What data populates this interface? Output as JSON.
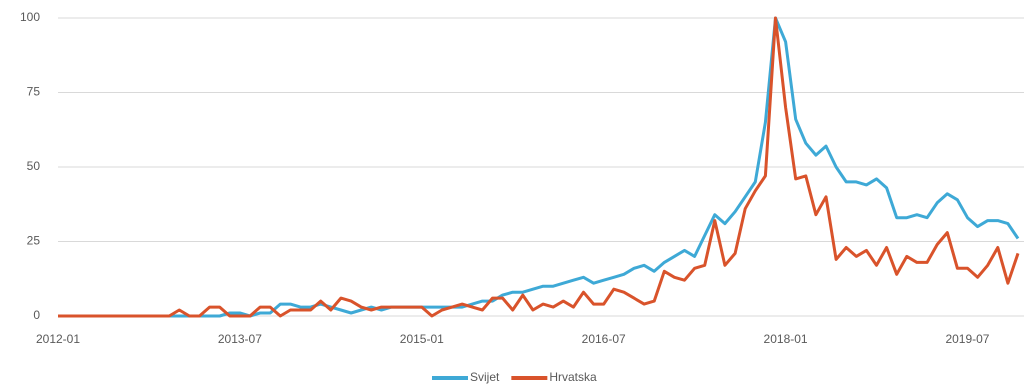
{
  "chart_data": {
    "type": "line",
    "categories": [
      "2012-01",
      null,
      null,
      null,
      null,
      null,
      null,
      null,
      null,
      null,
      null,
      null,
      null,
      null,
      null,
      null,
      null,
      null,
      "2013-07",
      null,
      null,
      null,
      null,
      null,
      null,
      null,
      null,
      null,
      null,
      null,
      null,
      null,
      null,
      null,
      null,
      null,
      "2015-01",
      null,
      null,
      null,
      null,
      null,
      null,
      null,
      null,
      null,
      null,
      null,
      null,
      null,
      null,
      null,
      null,
      null,
      "2016-07",
      null,
      null,
      null,
      null,
      null,
      null,
      null,
      null,
      null,
      null,
      null,
      null,
      null,
      null,
      null,
      null,
      null,
      "2018-01",
      null,
      null,
      null,
      null,
      null,
      null,
      null,
      null,
      null,
      null,
      null,
      null,
      null,
      null,
      null,
      null,
      null,
      "2019-07",
      null,
      null,
      null,
      null,
      null
    ],
    "series": [
      {
        "name": "Svijet",
        "color": "#3ea9d6",
        "values": [
          0,
          0,
          0,
          0,
          0,
          0,
          0,
          0,
          0,
          0,
          0,
          0,
          0,
          0,
          0,
          0,
          0,
          1,
          1,
          0,
          1,
          1,
          4,
          4,
          3,
          3,
          4,
          3,
          2,
          1,
          2,
          3,
          2,
          3,
          3,
          3,
          3,
          3,
          3,
          3,
          3,
          4,
          5,
          5,
          7,
          8,
          8,
          9,
          10,
          10,
          11,
          12,
          13,
          11,
          12,
          13,
          14,
          16,
          17,
          15,
          18,
          20,
          22,
          20,
          27,
          34,
          31,
          35,
          40,
          45,
          65,
          100,
          92,
          66,
          58,
          54,
          57,
          50,
          45,
          45,
          44,
          46,
          43,
          33,
          33,
          34,
          33,
          38,
          41,
          39,
          33,
          30,
          32,
          32,
          31,
          26
        ]
      },
      {
        "name": "Hrvatska",
        "color": "#d9532b",
        "values": [
          0,
          0,
          0,
          0,
          0,
          0,
          0,
          0,
          0,
          0,
          0,
          0,
          2,
          0,
          0,
          3,
          3,
          0,
          0,
          0,
          3,
          3,
          0,
          2,
          2,
          2,
          5,
          2,
          6,
          5,
          3,
          2,
          3,
          3,
          3,
          3,
          3,
          0,
          2,
          3,
          4,
          3,
          2,
          6,
          6,
          2,
          7,
          2,
          4,
          3,
          5,
          3,
          8,
          4,
          4,
          9,
          8,
          6,
          4,
          5,
          15,
          13,
          12,
          16,
          17,
          32,
          17,
          21,
          36,
          42,
          47,
          100,
          70,
          46,
          47,
          34,
          40,
          19,
          23,
          20,
          22,
          17,
          23,
          14,
          20,
          18,
          18,
          24,
          28,
          16,
          16,
          13,
          17,
          23,
          11,
          21
        ]
      }
    ],
    "ylim": [
      0,
      100
    ],
    "yticks": [
      0,
      25,
      50,
      75,
      100
    ],
    "grid": true,
    "legend": "bottom"
  }
}
